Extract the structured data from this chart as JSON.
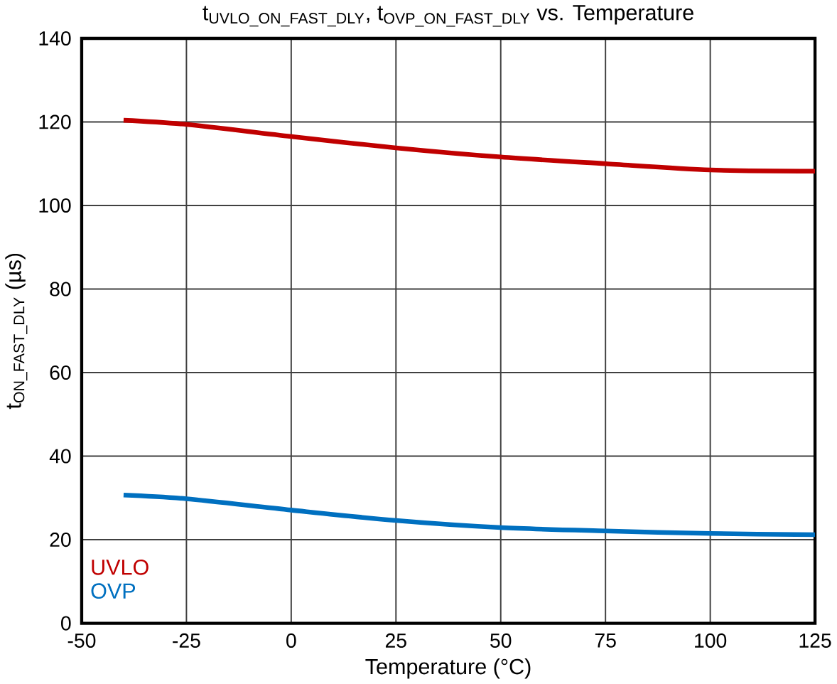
{
  "chart_data": {
    "type": "line",
    "title": "\\text{t}_{\\text{UVLO\\_ON\\_FAST\\_DLY}}\\text{, t}_{\\text{OVP\\_ON\\_FAST\\_DLY}}\\text{ vs. Temperature}",
    "xlabel": "Temperature (°C)",
    "ylabel": "\\text{t}_{\\text{ON\\_FAST\\_DLY}}\\text{ (µs)}",
    "x": [
      -40,
      -25,
      0,
      25,
      50,
      75,
      100,
      125
    ],
    "series": [
      {
        "name": "UVLO",
        "color": "#c00000",
        "values": [
          120.4,
          119.4,
          116.5,
          113.8,
          111.6,
          110,
          108.5,
          108.2
        ]
      },
      {
        "name": "OVP",
        "color": "#0070c0",
        "values": [
          30.7,
          29.8,
          27.1,
          24.6,
          22.9,
          22.1,
          21.5,
          21.2
        ]
      }
    ],
    "xlim": [
      -50,
      125
    ],
    "ylim": [
      0,
      140
    ],
    "xticks": [
      -50,
      -25,
      0,
      25,
      50,
      75,
      100,
      125
    ],
    "yticks": [
      0,
      20,
      40,
      60,
      80,
      100,
      120,
      140
    ],
    "grid": true,
    "legend": "bottom left",
    "marker": "none",
    "line_style": "solid"
  }
}
